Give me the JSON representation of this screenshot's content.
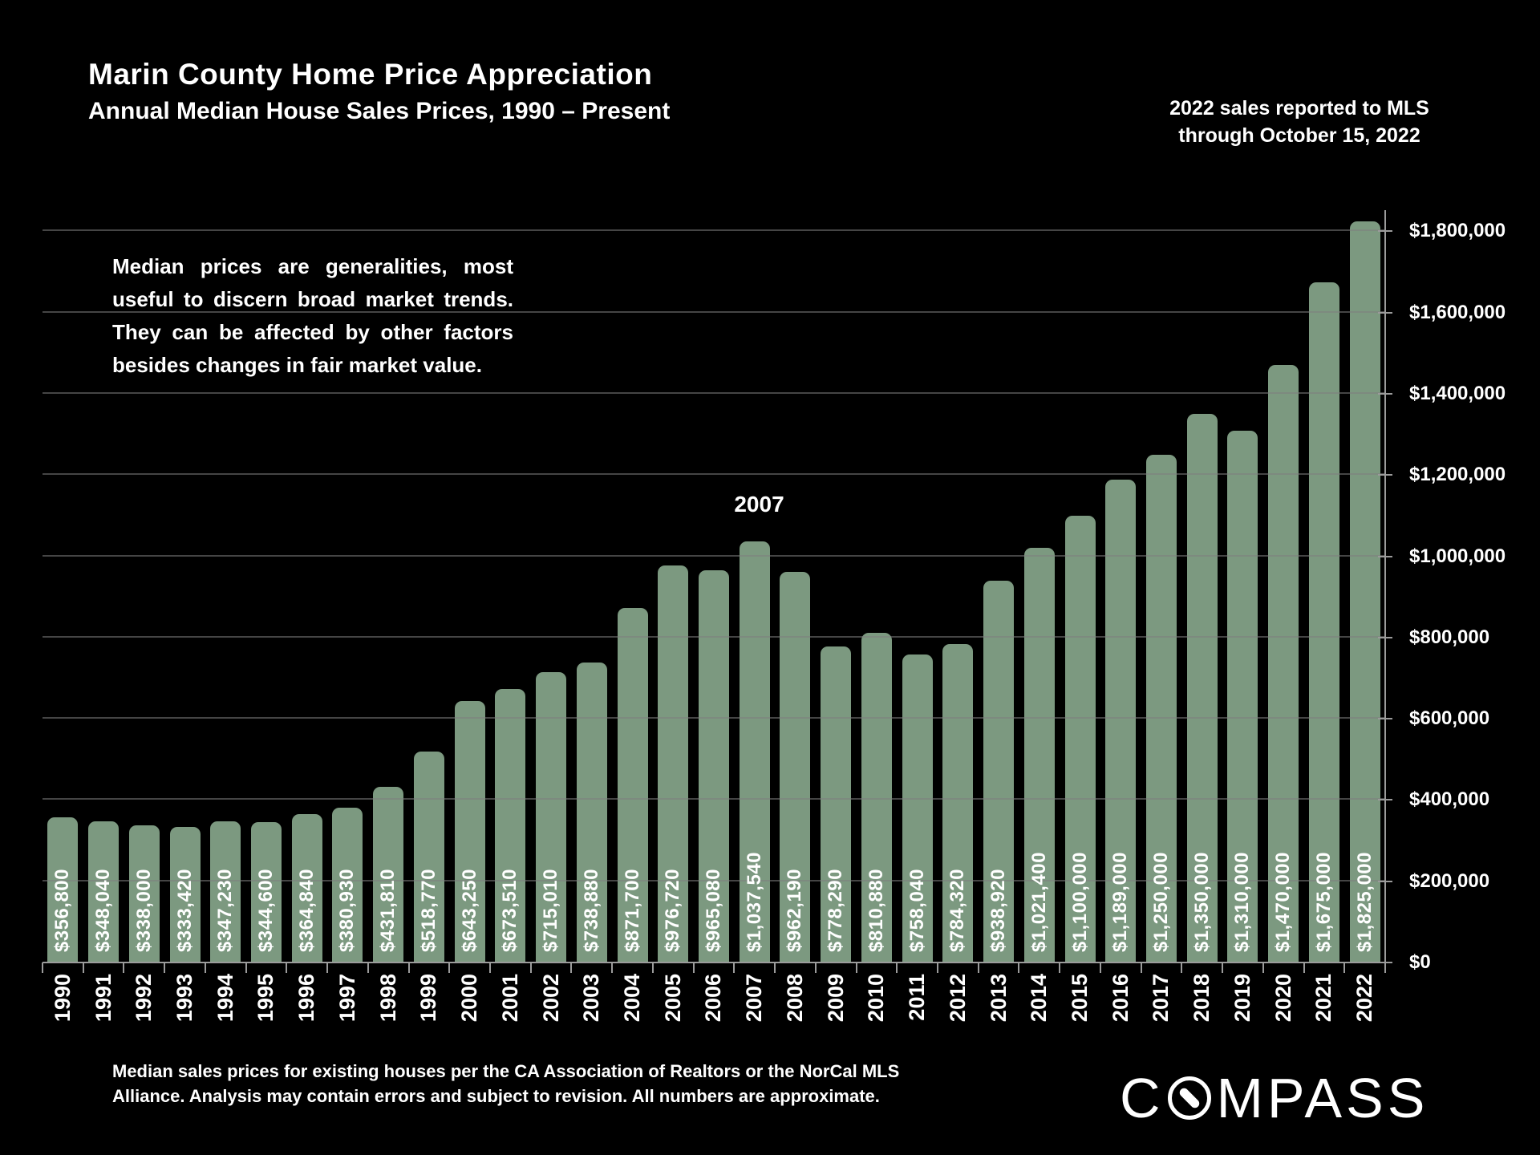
{
  "title": "Marin County Home Price Appreciation",
  "subtitle": "Annual Median House Sales Prices, 1990 – Present",
  "note": {
    "line1": "2022 sales reported to MLS",
    "line2": "through October 15, 2022"
  },
  "annotation": {
    "lines": [
      "Median prices are generalities, most",
      "useful to discern broad market trends.",
      "They can be affected by other factors",
      "besides changes in fair market value."
    ]
  },
  "footer": {
    "line1": "Median sales prices for existing houses per the CA Association of Realtors or the NorCal MLS",
    "line2": "Alliance. Analysis may contain errors and subject to revision. All numbers are approximate."
  },
  "logo": {
    "prefix": "C",
    "suffix": "MPASS",
    "icon": "compass-o-needle"
  },
  "colors": {
    "background": "#000000",
    "bar": "#7C9980",
    "text": "#FFFFFF",
    "gridline_rgba": "rgba(125,125,125,0.55)",
    "axis": "#9B9B9B"
  },
  "chart_data": {
    "type": "bar",
    "title": "Marin County Home Price Appreciation",
    "subtitle": "Annual Median House Sales Prices, 1990 - Present",
    "xlabel": "",
    "ylabel": "",
    "grid": true,
    "legend": false,
    "ylim": [
      0,
      1850000
    ],
    "annotated_year": "2007",
    "categories": [
      "1990",
      "1991",
      "1992",
      "1993",
      "1994",
      "1995",
      "1996",
      "1997",
      "1998",
      "1999",
      "2000",
      "2001",
      "2002",
      "2003",
      "2004",
      "2005",
      "2006",
      "2007",
      "2008",
      "2009",
      "2010",
      "2011",
      "2012",
      "2013",
      "2014",
      "2015",
      "2016",
      "2017",
      "2018",
      "2019",
      "2020",
      "2021",
      "2022"
    ],
    "values": [
      356800,
      348040,
      338000,
      333420,
      347230,
      344600,
      364840,
      380930,
      431810,
      518770,
      643250,
      673510,
      715010,
      738880,
      871700,
      976720,
      965080,
      1037540,
      962190,
      778290,
      810880,
      758040,
      784320,
      938920,
      1021400,
      1100000,
      1189000,
      1250000,
      1350000,
      1310000,
      1470000,
      1675000,
      1825000
    ],
    "bar_labels": [
      "$356,800",
      "$348,040",
      "$338,000",
      "$333,420",
      "$347,230",
      "$344,600",
      "$364,840",
      "$380,930",
      "$431,810",
      "$518,770",
      "$643,250",
      "$673,510",
      "$715,010",
      "$738,880",
      "$871,700",
      "$976,720",
      "$965,080",
      "$1,037,540",
      "$962,190",
      "$778,290",
      "$810,880",
      "$758,040",
      "$784,320",
      "$938,920",
      "$1,021,400",
      "$1,100,000",
      "$1,189,000",
      "$1,250,000",
      "$1,350,000",
      "$1,310,000",
      "$1,470,000",
      "$1,675,000",
      "$1,825,000"
    ],
    "y_axis": {
      "ticks": [
        {
          "value": 0,
          "label": "$0"
        },
        {
          "value": 200000,
          "label": "$200,000"
        },
        {
          "value": 400000,
          "label": "$400,000"
        },
        {
          "value": 600000,
          "label": "$600,000"
        },
        {
          "value": 800000,
          "label": "$800,000"
        },
        {
          "value": 1000000,
          "label": "$1,000,000"
        },
        {
          "value": 1200000,
          "label": "$1,200,000"
        },
        {
          "value": 1400000,
          "label": "$1,400,000"
        },
        {
          "value": 1600000,
          "label": "$1,600,000"
        },
        {
          "value": 1800000,
          "label": "$1,800,000"
        }
      ]
    }
  }
}
